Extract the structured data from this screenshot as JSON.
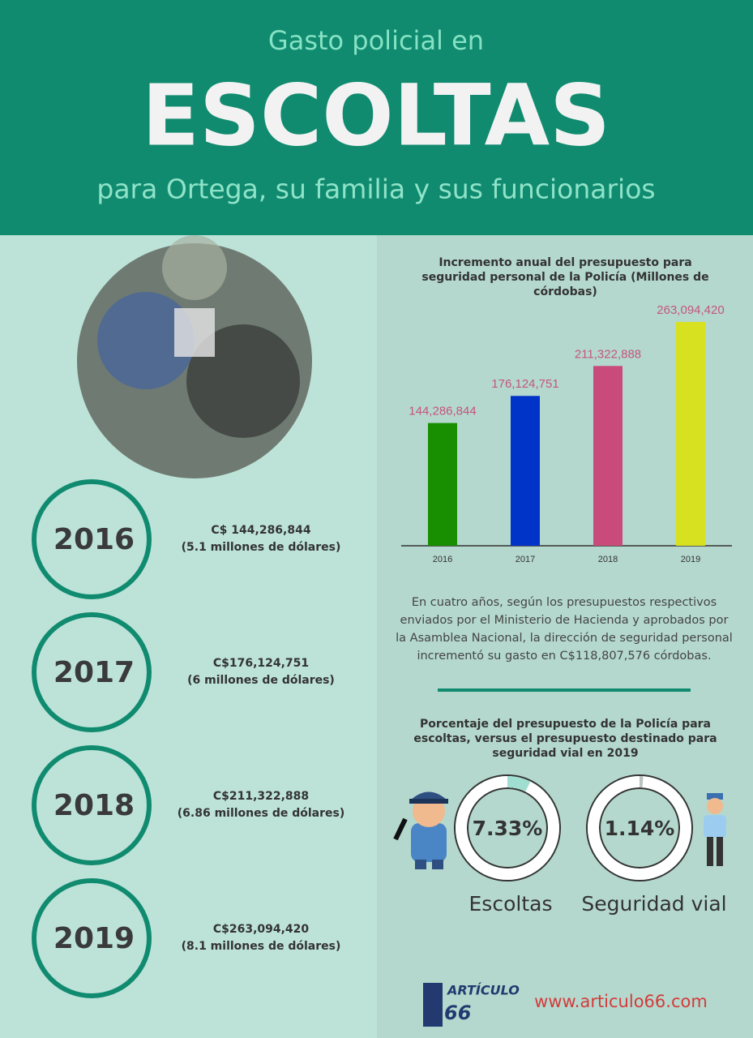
{
  "header": {
    "kicker": "Gasto policial en",
    "title": "ESCOLTAS",
    "subtitle": "para Ortega, su familia y sus funcionarios"
  },
  "timeline": [
    {
      "year": "2016",
      "amount": "C$ 144,286,844",
      "usd": "(5.1 millones de dólares)"
    },
    {
      "year": "2017",
      "amount": "C$176,124,751",
      "usd": "(6 millones de dólares)"
    },
    {
      "year": "2018",
      "amount": "C$211,322,888",
      "usd": "(6.86 millones de dólares)"
    },
    {
      "year": "2019",
      "amount": "C$263,094,420",
      "usd": "(8.1 millones de dólares)"
    }
  ],
  "chart_data": [
    {
      "type": "bar",
      "title": "Incremento anual del presupuesto para seguridad personal de la Policía (Millones de córdobas)",
      "categories": [
        "2016",
        "2017",
        "2018",
        "2019"
      ],
      "values": [
        144286844,
        176124751,
        211322888,
        263094420
      ],
      "value_labels": [
        "144,286,844",
        "176,124,751",
        "211,322,888",
        "263,094,420"
      ],
      "colors": [
        "#178f00",
        "#0034c8",
        "#c84b7b",
        "#d8e11f"
      ]
    },
    {
      "type": "donut",
      "title": "Porcentaje del presupuesto de la Policía para escoltas, versus el presupuesto destinado para seguridad vial en 2019",
      "categories": [
        "Escoltas",
        "Seguridad vial"
      ],
      "values": [
        7.33,
        1.14
      ],
      "value_labels": [
        "7.33%",
        "1.14%"
      ],
      "colors": [
        "#9fded0",
        "#b9c4c0"
      ]
    }
  ],
  "note": "En cuatro años, según los presupuestos respectivos enviados por el Ministerio de Hacienda y aprobados por la Asamblea Nacional, la dirección de seguridad personal incrementó su gasto en C$118,807,576 córdobas.",
  "footer": {
    "logo_word": "ARTÍCULO",
    "logo_number": "66",
    "url": "www.articulo66.com"
  }
}
